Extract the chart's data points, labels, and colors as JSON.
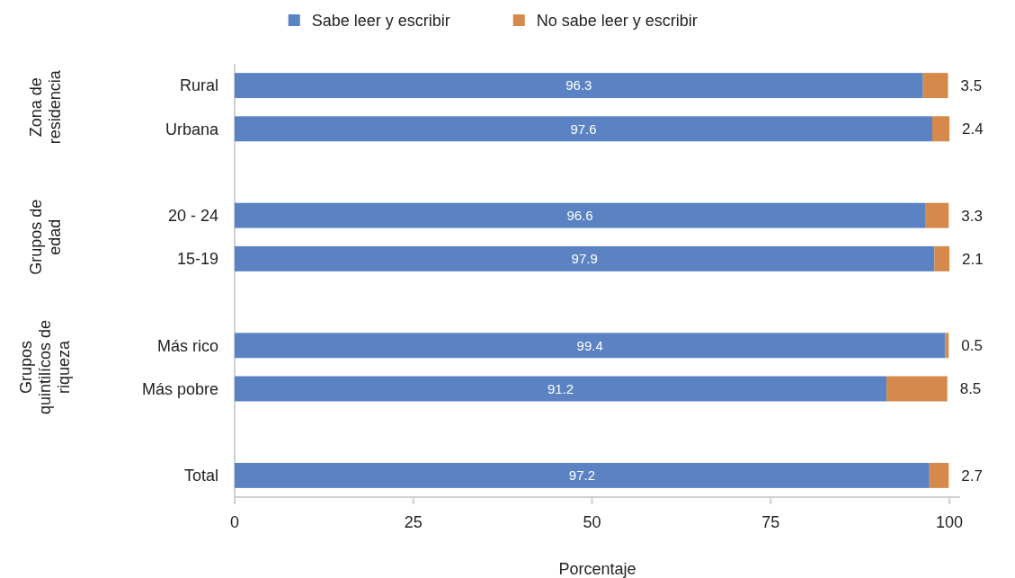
{
  "chart_data": {
    "type": "bar",
    "orientation": "horizontal",
    "stacked": true,
    "data_labels": true,
    "legend": "top",
    "grid": false,
    "xlabel": "Porcentaje",
    "categories": [
      "Rural",
      "Urbana",
      null,
      "20 - 24",
      "15-19",
      null,
      "Más rico",
      "Más pobre",
      null,
      "Total"
    ],
    "series": [
      {
        "name": "Sabe leer y escribir",
        "color": "#5b83c4",
        "values": [
          96.3,
          97.6,
          null,
          96.6,
          97.9,
          null,
          99.4,
          91.2,
          null,
          97.2
        ]
      },
      {
        "name": "No sabe leer y escribir",
        "color": "#d5894a",
        "values": [
          3.5,
          2.4,
          null,
          3.3,
          2.1,
          null,
          0.5,
          8.5,
          null,
          2.7
        ]
      }
    ],
    "xlim": [
      0,
      101.5
    ],
    "xticks": [
      0,
      25,
      50,
      75,
      100
    ],
    "annotations": [
      "Zona de residencia",
      "Grupos de edad",
      "Grupos quintilícos de riqueza"
    ]
  }
}
